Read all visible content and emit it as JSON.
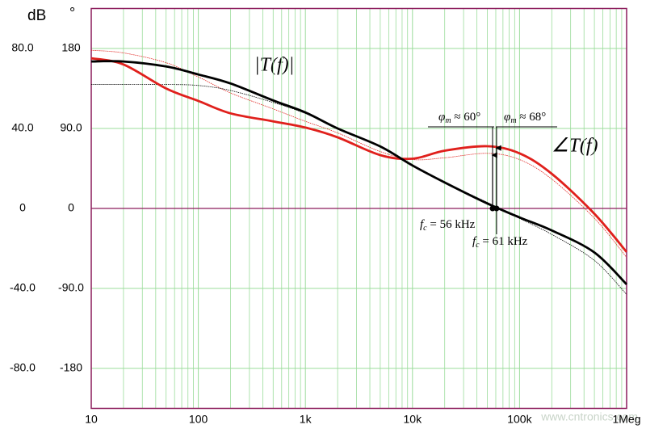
{
  "chart_data": {
    "type": "line",
    "y_unit": "dB",
    "y2_unit": "°",
    "xscale": "log",
    "xlim": [
      10,
      1000000
    ],
    "xticks": [
      10,
      100,
      {
        "value": 1000,
        "label": "1k"
      },
      {
        "value": 10000,
        "label": "10k"
      },
      {
        "value": 100000,
        "label": "100k"
      },
      {
        "value": 1000000,
        "label": "1Meg"
      }
    ],
    "xminorticks": [
      20,
      30,
      40,
      50,
      60,
      70,
      80,
      90,
      200,
      300,
      400,
      500,
      600,
      700,
      800,
      900,
      2000,
      3000,
      4000,
      5000,
      6000,
      7000,
      8000,
      9000,
      20000,
      30000,
      40000,
      50000,
      60000,
      70000,
      80000,
      90000,
      200000,
      300000,
      400000,
      500000,
      600000,
      700000,
      800000,
      900000
    ],
    "ylim": [
      -100,
      100
    ],
    "yticks": [
      {
        "value": 80,
        "label": "80.0"
      },
      {
        "value": 40,
        "label": "40.0"
      },
      0,
      {
        "value": -40,
        "label": "-40.0"
      },
      {
        "value": -80,
        "label": "-80.0"
      }
    ],
    "y2lim": [
      -225,
      225
    ],
    "y2ticks": [
      180,
      {
        "value": 90,
        "label": "90.0"
      },
      0,
      {
        "value": -90,
        "label": "-90.0"
      },
      -180
    ],
    "grid": true,
    "grid_color": "#9bdc9b",
    "frame_color": "#8c1c5c",
    "x": [
      10,
      20,
      50,
      100,
      200,
      500,
      1000,
      2000,
      5000,
      10000,
      20000,
      50000,
      100000,
      200000,
      500000,
      1000000
    ],
    "series": [
      {
        "color": "#000000",
        "width": 2.8,
        "values": [
          73.5,
          73.5,
          71,
          67,
          62.5,
          54,
          48,
          40,
          31,
          21.5,
          13,
          2.5,
          -4.5,
          -11,
          -22,
          -38
        ]
      },
      {
        "color": "#000000",
        "width": 0.8,
        "dash": true,
        "values": [
          62,
          62,
          62,
          61.5,
          59,
          53,
          47.5,
          40,
          31,
          21.5,
          13,
          3,
          -5,
          -13,
          -26,
          -43
        ]
      },
      {
        "color": "#e0201c",
        "width": 2.8,
        "axis": "y2",
        "values": [
          169,
          162,
          135,
          121,
          107,
          98,
          91,
          80,
          60,
          56,
          65,
          70,
          62,
          39,
          -6,
          -49
        ]
      },
      {
        "color": "#e0201c",
        "width": 0.8,
        "dash": true,
        "axis": "y2",
        "values": [
          178,
          175,
          164,
          148,
          130,
          112,
          98,
          85,
          64,
          55,
          57,
          62,
          55,
          33,
          -11,
          -55
        ]
      }
    ],
    "crossovers": [
      {
        "x": 56000,
        "y": 0,
        "phase_margin": 60,
        "pm_symbol": "φ",
        "pm_sub": "m",
        "pm_text": " ≈ 60°",
        "f_symbol": "f",
        "f_sub": "c",
        "f_text": " = 56 kHz"
      },
      {
        "x": 61000,
        "y": 0,
        "phase_margin": 68,
        "pm_symbol": "φ",
        "pm_sub": "m",
        "pm_text": " ≈ 68°",
        "f_symbol": "f",
        "f_sub": "c",
        "f_text": " = 61 kHz"
      }
    ],
    "magnitude_label": "|T(f)|",
    "phase_label": "∠T(f)",
    "watermark": "www.cntronics.com"
  }
}
